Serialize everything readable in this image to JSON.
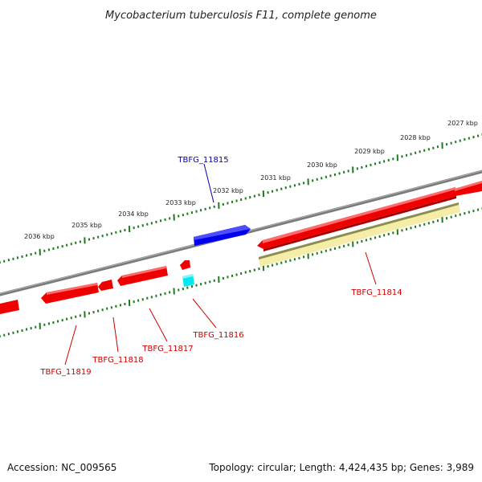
{
  "title": "Mycobacterium tuberculosis F11, complete genome",
  "footer": {
    "accession": "Accession: NC_009565",
    "summary": "Topology: circular; Length: 4,424,435 bp; Genes: 3,989"
  },
  "colors": {
    "backbone": "#808080",
    "tick": "#1f7a1f",
    "forward_gene": "#0000dd",
    "reverse_gene": "#ee0000",
    "cyan_gene": "#00e5ee",
    "highlight_gene": "#f3eaa6",
    "label_blue": "#0000aa",
    "label_red": "#cc0000"
  },
  "outer_ticks": [
    "2027 kbp",
    "2028 kbp",
    "2029 kbp",
    "2030 kbp",
    "2031 kbp",
    "2032 kbp",
    "2033 kbp",
    "2034 kbp",
    "2035 kbp",
    "2036 kbp"
  ],
  "genes": [
    {
      "label": "TBFG_11815",
      "strand": "forward",
      "color": "blue"
    },
    {
      "label": "TBFG_11814",
      "strand": "reverse",
      "color": "red"
    },
    {
      "label": "TBFG_11816",
      "strand": "reverse",
      "color": "red"
    },
    {
      "label": "TBFG_11817",
      "strand": "reverse",
      "color": "red"
    },
    {
      "label": "TBFG_11818",
      "strand": "reverse",
      "color": "red"
    },
    {
      "label": "TBFG_11819",
      "strand": "reverse",
      "color": "red"
    }
  ]
}
